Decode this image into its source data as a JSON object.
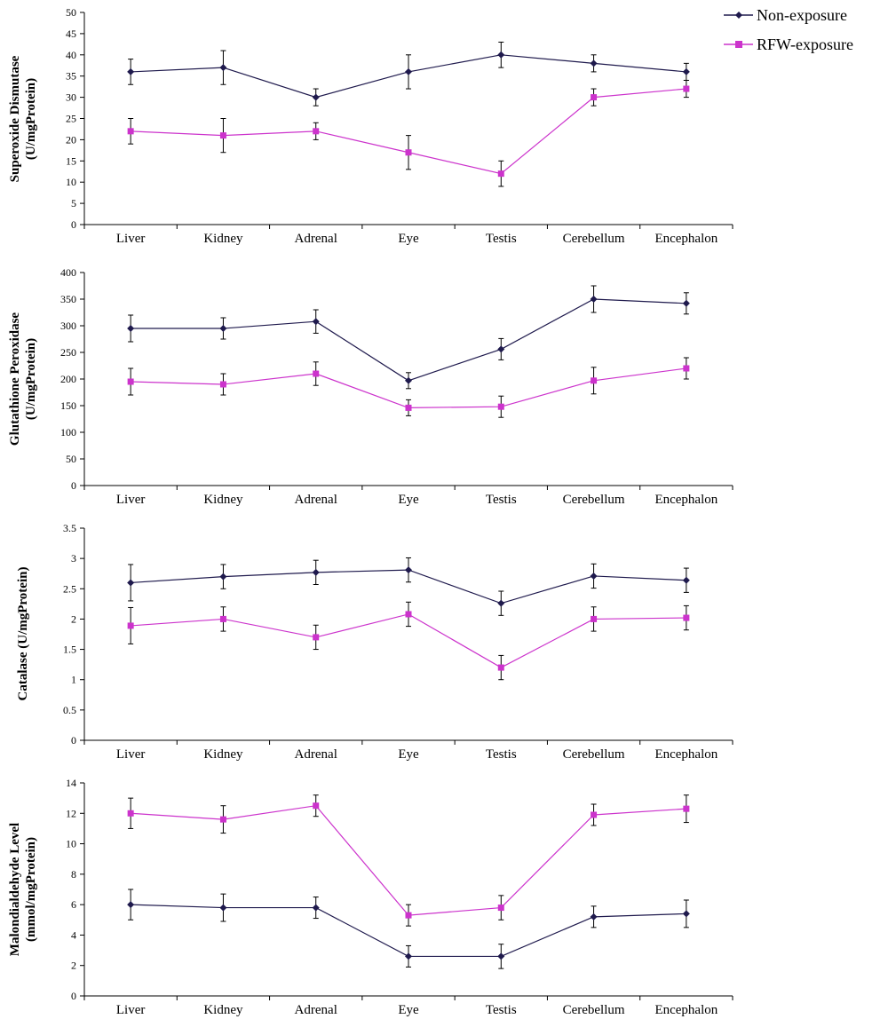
{
  "legend": {
    "placement": "top-right",
    "entries": [
      {
        "label": "Non-exposure",
        "color": "#1f1a4d",
        "marker": "diamond"
      },
      {
        "label": "RFW-exposure",
        "color": "#cc33cc",
        "marker": "square"
      }
    ]
  },
  "chart_data": [
    {
      "type": "line",
      "ylabel_lines": [
        "Superoxide Dismutase",
        "(U/mgProtein)"
      ],
      "ylim": [
        0,
        50
      ],
      "yticks": [
        "0",
        "5",
        "10",
        "15",
        "20",
        "25",
        "30",
        "35",
        "40",
        "45",
        "50"
      ],
      "categories": [
        "Liver",
        "Kidney",
        "Adrenal",
        "Eye",
        "Testis",
        "Cerebellum",
        "Encephalon"
      ],
      "grid": false,
      "series": [
        {
          "name": "Non-exposure",
          "values": [
            36,
            37,
            30,
            36,
            40,
            38,
            36
          ],
          "errors": [
            3,
            4,
            2,
            4,
            3,
            2,
            2
          ]
        },
        {
          "name": "RFW-exposure",
          "values": [
            22,
            21,
            22,
            17,
            12,
            30,
            32
          ],
          "errors": [
            3,
            4,
            2,
            4,
            3,
            2,
            2
          ]
        }
      ]
    },
    {
      "type": "line",
      "ylabel_lines": [
        "Glutathione Peroxidase",
        "(U/mgProtein)"
      ],
      "ylim": [
        0,
        400
      ],
      "yticks": [
        "0",
        "50",
        "100",
        "150",
        "200",
        "250",
        "300",
        "350",
        "400"
      ],
      "categories": [
        "Liver",
        "Kidney",
        "Adrenal",
        "Eye",
        "Testis",
        "Cerebellum",
        "Encephalon"
      ],
      "grid": false,
      "series": [
        {
          "name": "Non-exposure",
          "values": [
            295,
            295,
            308,
            197,
            256,
            350,
            342
          ],
          "errors": [
            25,
            20,
            22,
            15,
            20,
            25,
            20
          ]
        },
        {
          "name": "RFW-exposure",
          "values": [
            195,
            190,
            210,
            146,
            148,
            197,
            220
          ],
          "errors": [
            25,
            20,
            22,
            15,
            20,
            25,
            20
          ]
        }
      ]
    },
    {
      "type": "line",
      "ylabel_lines": [
        "Catalase (U/mgProtein)"
      ],
      "ylim": [
        0,
        3.5
      ],
      "yticks": [
        "0",
        "0.5",
        "1",
        "1.5",
        "2",
        "2.5",
        "3",
        "3.5"
      ],
      "categories": [
        "Liver",
        "Kidney",
        "Adrenal",
        "Eye",
        "Testis",
        "Cerebellum",
        "Encephalon"
      ],
      "grid": false,
      "series": [
        {
          "name": "Non-exposure",
          "values": [
            2.6,
            2.7,
            2.77,
            2.81,
            2.26,
            2.71,
            2.64
          ],
          "errors": [
            0.3,
            0.2,
            0.2,
            0.2,
            0.2,
            0.2,
            0.2
          ]
        },
        {
          "name": "RFW-exposure",
          "values": [
            1.89,
            2.0,
            1.7,
            2.08,
            1.2,
            2.0,
            2.02
          ],
          "errors": [
            0.3,
            0.2,
            0.2,
            0.2,
            0.2,
            0.2,
            0.2
          ]
        }
      ]
    },
    {
      "type": "line",
      "ylabel_lines": [
        "Malondialdehyde Level",
        "(mmol/mgProtein)"
      ],
      "ylim": [
        0,
        14
      ],
      "yticks": [
        "0",
        "2",
        "4",
        "6",
        "8",
        "10",
        "12",
        "14"
      ],
      "categories": [
        "Liver",
        "Kidney",
        "Adrenal",
        "Eye",
        "Testis",
        "Cerebellum",
        "Encephalon"
      ],
      "grid": false,
      "series": [
        {
          "name": "Non-exposure",
          "values": [
            6.0,
            5.8,
            5.8,
            2.6,
            2.6,
            5.2,
            5.4
          ],
          "errors": [
            1.0,
            0.9,
            0.7,
            0.7,
            0.8,
            0.7,
            0.9
          ]
        },
        {
          "name": "RFW-exposure",
          "values": [
            12.0,
            11.6,
            12.5,
            5.3,
            5.8,
            11.9,
            12.3
          ],
          "errors": [
            1.0,
            0.9,
            0.7,
            0.7,
            0.8,
            0.7,
            0.9
          ]
        }
      ]
    }
  ]
}
